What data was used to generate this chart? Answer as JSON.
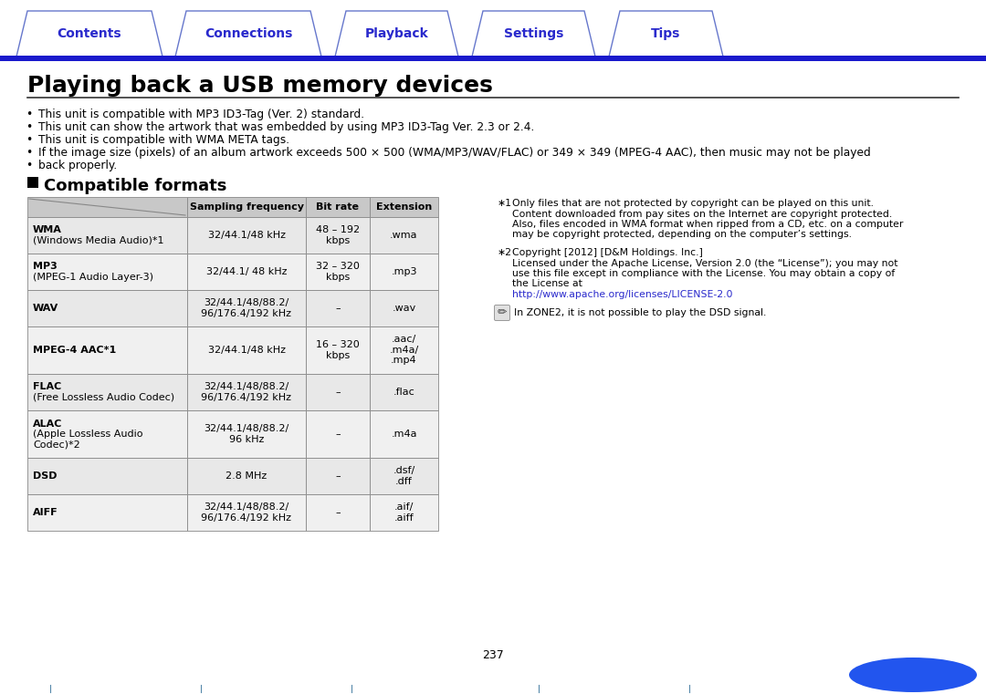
{
  "bg_color": "#ffffff",
  "tab_color": "#2929cc",
  "tab_border": "#6677cc",
  "tabs": [
    "Contents",
    "Connections",
    "Playback",
    "Settings",
    "Tips"
  ],
  "title": "Playing back a USB memory devices",
  "blue_bar_color": "#1a1acc",
  "bullets": [
    "This unit is compatible with MP3 ID3-Tag (Ver. 2) standard.",
    "This unit can show the artwork that was embedded by using MP3 ID3-Tag Ver. 2.3 or 2.4.",
    "This unit is compatible with WMA META tags.",
    "If the image size (pixels) of an album artwork exceeds 500 × 500 (WMA/MP3/WAV/FLAC) or 349 × 349 (MPEG-4 AAC), then music may not be played",
    "back properly."
  ],
  "section_title": "Compatible formats",
  "table_header": [
    "",
    "Sampling frequency",
    "Bit rate",
    "Extension"
  ],
  "table_rows": [
    [
      "WMA\n(Windows Media Audio)*1",
      "32/44.1/48 kHz",
      "48 – 192\nkbps",
      ".wma"
    ],
    [
      "MP3\n(MPEG-1 Audio Layer-3)",
      "32/44.1/ 48 kHz",
      "32 – 320\nkbps",
      ".mp3"
    ],
    [
      "WAV",
      "32/44.1/48/88.2/\n96/176.4/192 kHz",
      "–",
      ".wav"
    ],
    [
      "MPEG-4 AAC*1",
      "32/44.1/48 kHz",
      "16 – 320\nkbps",
      ".aac/\n.m4a/\n.mp4"
    ],
    [
      "FLAC\n(Free Lossless Audio Codec)",
      "32/44.1/48/88.2/\n96/176.4/192 kHz",
      "–",
      ".flac"
    ],
    [
      "ALAC\n(Apple Lossless Audio\nCodec)*2",
      "32/44.1/48/88.2/\n96 kHz",
      "–",
      ".m4a"
    ],
    [
      "DSD",
      "2.8 MHz",
      "–",
      ".dsf/\n.dff"
    ],
    [
      "AIFF",
      "32/44.1/48/88.2/\n96/176.4/192 kHz",
      "–",
      ".aif/\n.aiff"
    ]
  ],
  "note1_marker": "∗1",
  "note1_text": "Only files that are not protected by copyright can be played on this unit.\nContent downloaded from pay sites on the Internet are copyright protected.\nAlso, files encoded in WMA format when ripped from a CD, etc. on a computer\nmay be copyright protected, depending on the computer’s settings.",
  "note2_marker": "∗2",
  "note2_line1": "Copyright [2012] [D&M Holdings. Inc.]",
  "note2_line2": "Licensed under the Apache License, Version 2.0 (the “License”); you may not",
  "note2_line3": "use this file except in compliance with the License. You may obtain a copy of",
  "note2_line4": "the License at",
  "note2_link": "http://www.apache.org/licenses/LICENSE-2.0",
  "note3_text": "In ZONE2, it is not possible to play the DSD signal.",
  "page_number": "237",
  "blue_blob_color": "#2255ee",
  "table_header_bg": "#c8c8c8",
  "table_row_bg_alt": "#e8e8e8",
  "table_row_bg": "#f0f0f0",
  "table_border": "#888888",
  "text_color": "#000000",
  "link_color": "#2929cc",
  "bottom_tick_color": "#5588aa"
}
